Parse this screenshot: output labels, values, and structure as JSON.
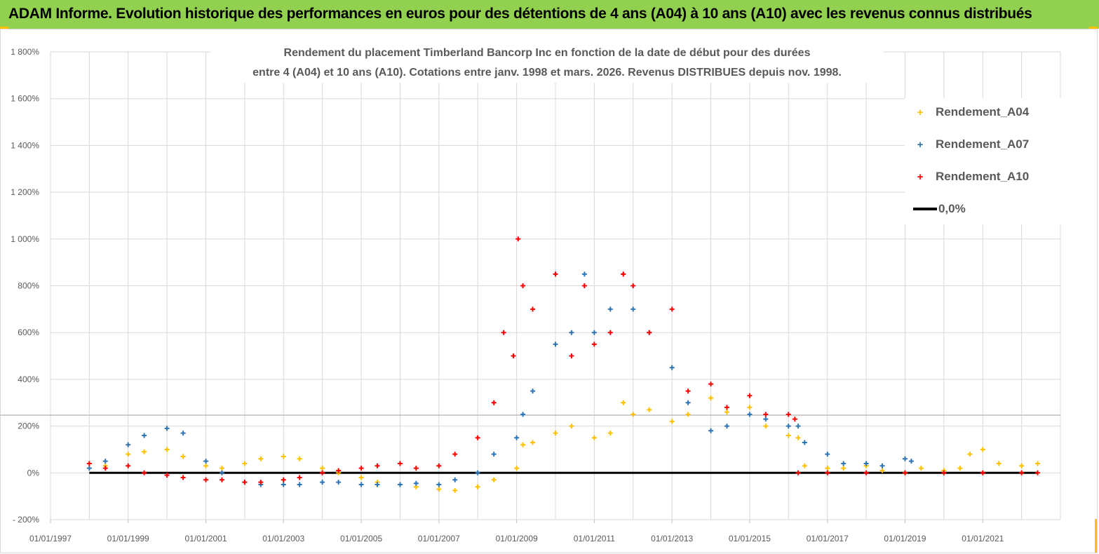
{
  "banner": {
    "title": "ADAM Informe. Evolution historique des performances en euros pour des détentions de 4 ans (A04) à 10 ans (A10) avec les revenus connus distribués"
  },
  "colors": {
    "banner": "#92d050",
    "A04": "#ffc000",
    "A07": "#2e75b6",
    "A10": "#ff0000",
    "zero": "#000000"
  },
  "chart_data": {
    "type": "scatter",
    "title_lines": [
      "Rendement du placement Timberland Bancorp Inc en fonction de la date de début pour des durées",
      "entre 4 (A04) et 10 ans (A10).  Cotations entre janv. 1998 et mars. 2026. Revenus DISTRIBUES depuis nov. 1998."
    ],
    "y_ticks": [
      "- 200%",
      "0%",
      "200%",
      "400%",
      "600%",
      "800%",
      "1 000%",
      "1 200%",
      "1 400%",
      "1 600%",
      "1 800%"
    ],
    "ylim": [
      -200,
      1800
    ],
    "x_ticks": [
      "01/01/1997",
      "01/01/1999",
      "01/01/2001",
      "01/01/2003",
      "01/01/2005",
      "01/01/2007",
      "01/01/2009",
      "01/01/2011",
      "01/01/2013",
      "01/01/2015",
      "01/01/2017",
      "01/01/2019",
      "01/01/2021"
    ],
    "xlim": [
      "1997-01-01",
      "2023-01-01"
    ],
    "legend_position": "top-right",
    "series": [
      {
        "name": "Rendement_A04",
        "x": [
          "1998-01-01",
          "1998-06-01",
          "1999-01-01",
          "1999-06-01",
          "2000-01-01",
          "2000-06-01",
          "2001-01-01",
          "2001-06-01",
          "2002-01-01",
          "2002-06-01",
          "2003-01-01",
          "2003-06-01",
          "2004-01-01",
          "2004-06-01",
          "2005-01-01",
          "2005-06-01",
          "2006-01-01",
          "2006-06-01",
          "2007-01-01",
          "2007-06-01",
          "2008-01-01",
          "2008-06-01",
          "2009-01-01",
          "2009-03-01",
          "2009-06-01",
          "2010-01-01",
          "2010-06-01",
          "2011-01-01",
          "2011-06-01",
          "2011-10-01",
          "2012-01-01",
          "2012-06-01",
          "2013-01-01",
          "2013-06-01",
          "2014-01-01",
          "2014-06-01",
          "2015-01-01",
          "2015-06-01",
          "2016-01-01",
          "2016-04-01",
          "2016-06-01",
          "2017-01-01",
          "2017-06-01",
          "2018-01-01",
          "2018-06-01",
          "2019-01-01",
          "2019-06-01",
          "2020-01-01",
          "2020-06-01",
          "2020-09-01",
          "2021-01-01",
          "2021-06-01",
          "2022-01-01",
          "2022-06-01"
        ],
        "y": [
          40,
          30,
          80,
          90,
          100,
          70,
          30,
          20,
          40,
          60,
          70,
          60,
          20,
          0,
          -20,
          -40,
          -50,
          -60,
          -70,
          -75,
          -60,
          -30,
          20,
          120,
          130,
          170,
          200,
          150,
          170,
          300,
          250,
          270,
          220,
          250,
          320,
          260,
          280,
          200,
          160,
          150,
          30,
          20,
          20,
          30,
          10,
          0,
          20,
          10,
          20,
          80,
          100,
          40,
          30,
          40
        ]
      },
      {
        "name": "Rendement_A07",
        "x": [
          "1998-01-01",
          "1998-06-01",
          "1999-01-01",
          "1999-06-01",
          "2000-01-01",
          "2000-06-01",
          "2001-01-01",
          "2001-06-01",
          "2002-01-01",
          "2002-06-01",
          "2003-01-01",
          "2003-06-01",
          "2004-01-01",
          "2004-06-01",
          "2005-01-01",
          "2005-06-01",
          "2006-01-01",
          "2006-06-01",
          "2007-01-01",
          "2007-06-01",
          "2008-01-01",
          "2008-06-01",
          "2009-01-01",
          "2009-03-01",
          "2009-06-01",
          "2010-01-01",
          "2010-06-01",
          "2010-10-01",
          "2011-01-01",
          "2011-06-01",
          "2011-10-01",
          "2012-01-01",
          "2012-06-01",
          "2013-01-01",
          "2013-06-01",
          "2014-01-01",
          "2014-06-01",
          "2015-01-01",
          "2015-06-01",
          "2016-01-01",
          "2016-04-01",
          "2016-06-01",
          "2017-01-01",
          "2017-06-01",
          "2018-01-01",
          "2018-06-01",
          "2019-01-01",
          "2019-03-01"
        ],
        "y": [
          20,
          50,
          120,
          160,
          190,
          170,
          50,
          0,
          -40,
          -50,
          -50,
          -50,
          -40,
          -40,
          -50,
          -50,
          -50,
          -45,
          -50,
          -30,
          0,
          80,
          150,
          250,
          350,
          550,
          600,
          850,
          600,
          700,
          850,
          700,
          600,
          450,
          300,
          180,
          200,
          250,
          230,
          200,
          200,
          130,
          80,
          40,
          40,
          30,
          60,
          50
        ]
      },
      {
        "name": "Rendement_A10",
        "x": [
          "1998-01-01",
          "1998-06-01",
          "1999-01-01",
          "1999-06-01",
          "2000-01-01",
          "2000-06-01",
          "2001-01-01",
          "2001-06-01",
          "2002-01-01",
          "2002-06-01",
          "2003-01-01",
          "2003-06-01",
          "2004-01-01",
          "2004-06-01",
          "2005-01-01",
          "2005-06-01",
          "2006-01-01",
          "2006-06-01",
          "2007-01-01",
          "2007-06-01",
          "2008-01-01",
          "2008-06-01",
          "2008-09-01",
          "2008-12-01",
          "2009-01-15",
          "2009-03-01",
          "2009-06-01",
          "2010-01-01",
          "2010-06-01",
          "2010-10-01",
          "2011-01-01",
          "2011-06-01",
          "2011-10-01",
          "2012-01-01",
          "2012-06-01",
          "2013-01-01",
          "2013-06-01",
          "2014-01-01",
          "2014-06-01",
          "2015-01-01",
          "2015-06-01",
          "2016-01-01",
          "2016-03-01",
          "2016-04-01",
          "2017-01-01",
          "2018-01-01",
          "2019-01-01",
          "2020-01-01",
          "2021-01-01",
          "2022-01-01",
          "2022-06-01"
        ],
        "y": [
          40,
          20,
          30,
          0,
          -10,
          -20,
          -30,
          -30,
          -40,
          -40,
          -30,
          -20,
          0,
          10,
          20,
          30,
          40,
          20,
          30,
          80,
          150,
          300,
          600,
          500,
          1000,
          800,
          700,
          850,
          500,
          800,
          550,
          600,
          850,
          800,
          600,
          700,
          350,
          380,
          280,
          330,
          250,
          250,
          230,
          0,
          0,
          0,
          0,
          0,
          0,
          0,
          0
        ]
      },
      {
        "name": "0,0%",
        "x": [
          "1998-01-01",
          "2022-06-01"
        ],
        "y": [
          0,
          0
        ]
      }
    ]
  }
}
